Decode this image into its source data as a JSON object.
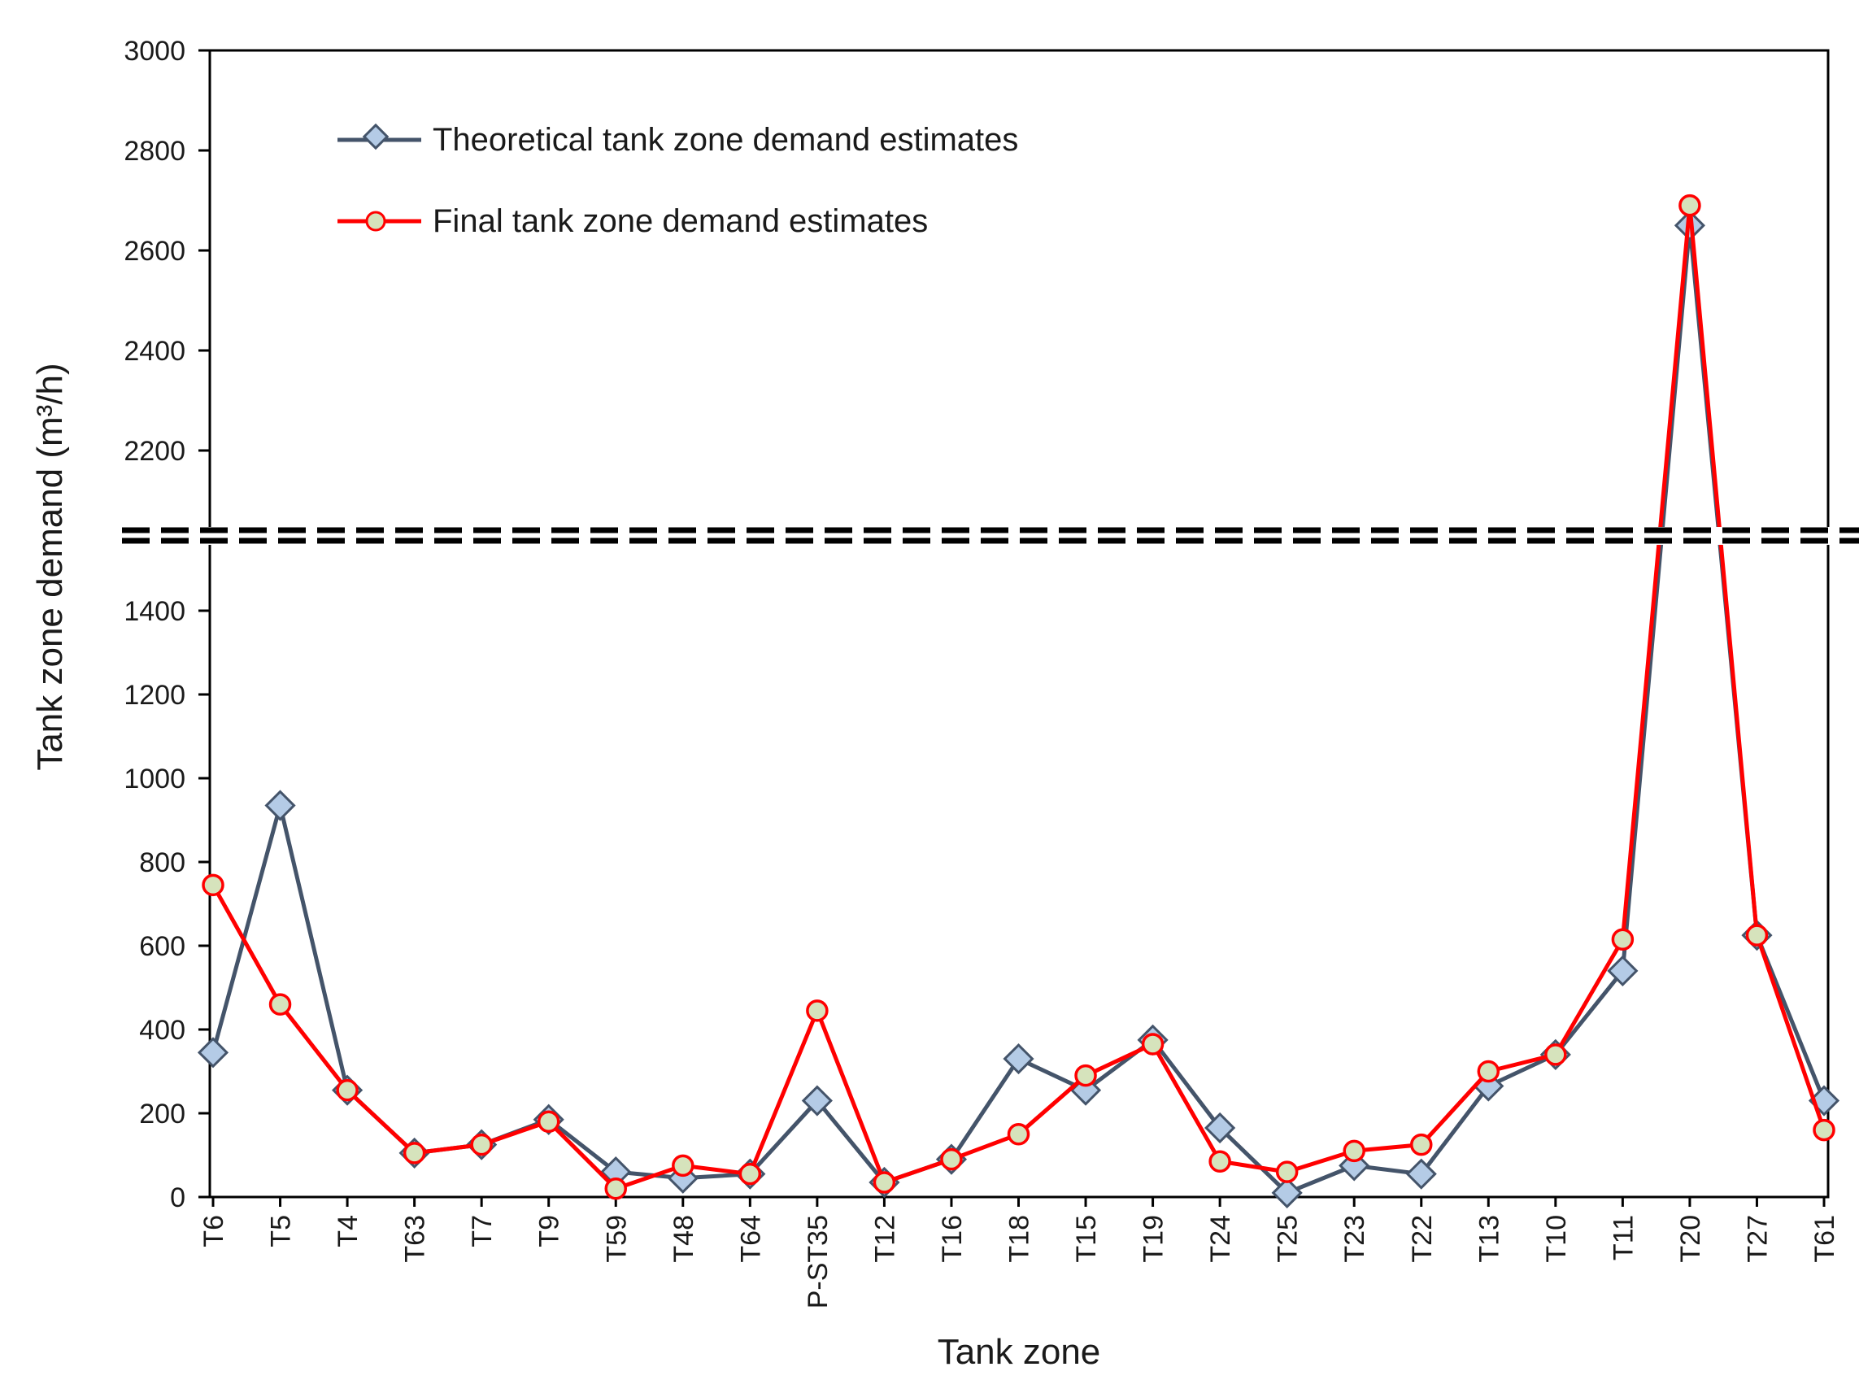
{
  "chart_data": {
    "type": "line",
    "title": "",
    "xlabel": "Tank zone",
    "ylabel": "Tank zone demand (m³/h)",
    "categories": [
      "T6",
      "T5",
      "T4",
      "T63",
      "T7",
      "T9",
      "T59",
      "T48",
      "T64",
      "P-ST35",
      "T12",
      "T16",
      "T18",
      "T15",
      "T19",
      "T24",
      "T25",
      "T23",
      "T22",
      "T13",
      "T10",
      "T11",
      "T20",
      "T27",
      "T61"
    ],
    "series": [
      {
        "name": "Theoretical tank zone demand estimates",
        "color": "#44546a",
        "marker": "diamond",
        "marker_fill": "#b4cbe6",
        "values": [
          345,
          935,
          255,
          105,
          125,
          185,
          60,
          45,
          55,
          230,
          35,
          90,
          330,
          255,
          375,
          165,
          10,
          75,
          55,
          265,
          340,
          540,
          2650,
          625,
          230
        ]
      },
      {
        "name": "Final tank zone demand estimates",
        "color": "#ff0000",
        "marker": "circle",
        "marker_fill": "#d6e3bc",
        "values": [
          745,
          460,
          255,
          105,
          125,
          180,
          20,
          75,
          55,
          445,
          35,
          90,
          150,
          290,
          365,
          85,
          60,
          110,
          125,
          300,
          340,
          615,
          2690,
          625,
          160
        ]
      }
    ],
    "y_axis": {
      "broken": true,
      "lower_range": [
        0,
        1600
      ],
      "lower_ticks": [
        "0",
        "200",
        "400",
        "600",
        "800",
        "1000",
        "1200",
        "1400"
      ],
      "upper_range": [
        2030,
        3000
      ],
      "upper_ticks": [
        "2200",
        "2400",
        "2600",
        "2800",
        "3000"
      ]
    },
    "legend_position": "top-left",
    "grid": false
  }
}
